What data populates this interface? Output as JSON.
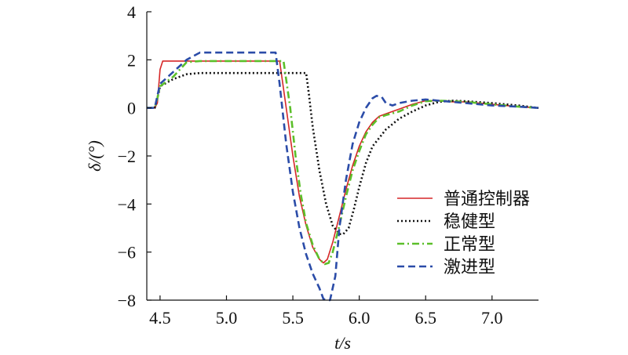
{
  "chart_data": {
    "type": "line",
    "xlabel": "t/s",
    "ylabel": "δ/(°)",
    "xlim": [
      4.4,
      7.35
    ],
    "ylim": [
      -8,
      4
    ],
    "xticks": [
      "4.5",
      "5.0",
      "5.5",
      "6.0",
      "6.5",
      "7.0"
    ],
    "xtick_values": [
      4.5,
      5.0,
      5.5,
      6.0,
      6.5,
      7.0
    ],
    "yticks": [
      "4",
      "2",
      "0",
      "−2",
      "−4",
      "−6",
      "−8"
    ],
    "ytick_values": [
      4,
      2,
      0,
      -2,
      -4,
      -6,
      -8
    ],
    "grid": false,
    "legend_position": "lower-right",
    "series": [
      {
        "name": "普通控制器",
        "color": "#d62728",
        "dash": "solid",
        "x": [
          4.4,
          4.46,
          4.48,
          4.5,
          4.52,
          4.6,
          5.0,
          5.4,
          5.45,
          5.5,
          5.55,
          5.6,
          5.65,
          5.7,
          5.73,
          5.76,
          5.8,
          5.85,
          5.9,
          5.95,
          6.0,
          6.05,
          6.1,
          6.15,
          6.2,
          6.3,
          6.4,
          6.5,
          6.6,
          6.7,
          6.8,
          7.0,
          7.2,
          7.35
        ],
        "y": [
          0,
          0,
          0.2,
          1.6,
          1.95,
          1.95,
          1.95,
          1.95,
          0.0,
          -2.0,
          -3.7,
          -4.9,
          -5.8,
          -6.3,
          -6.45,
          -6.3,
          -5.6,
          -4.5,
          -3.4,
          -2.4,
          -1.6,
          -1.0,
          -0.6,
          -0.35,
          -0.25,
          -0.05,
          0.15,
          0.3,
          0.3,
          0.25,
          0.25,
          0.15,
          0.05,
          0.0
        ]
      },
      {
        "name": "稳健型",
        "color": "#111111",
        "dash": "dotted",
        "x": [
          4.4,
          4.46,
          4.48,
          4.5,
          4.6,
          4.7,
          4.8,
          5.0,
          5.3,
          5.6,
          5.62,
          5.65,
          5.7,
          5.75,
          5.8,
          5.85,
          5.88,
          5.92,
          5.96,
          6.0,
          6.05,
          6.1,
          6.2,
          6.3,
          6.4,
          6.5,
          6.6,
          6.7,
          6.8,
          7.0,
          7.2,
          7.35
        ],
        "y": [
          0,
          0,
          0.4,
          0.9,
          1.2,
          1.4,
          1.45,
          1.45,
          1.45,
          1.45,
          0.6,
          -0.8,
          -2.6,
          -4.0,
          -4.9,
          -5.25,
          -5.25,
          -5.0,
          -4.2,
          -3.3,
          -2.3,
          -1.6,
          -0.9,
          -0.45,
          -0.15,
          0.1,
          0.25,
          0.3,
          0.28,
          0.2,
          0.1,
          0.0
        ]
      },
      {
        "name": "正常型",
        "color": "#5cbf2a",
        "dash": "dashdot",
        "x": [
          4.4,
          4.46,
          4.48,
          4.5,
          4.6,
          4.7,
          4.8,
          5.0,
          5.3,
          5.43,
          5.48,
          5.52,
          5.56,
          5.6,
          5.65,
          5.7,
          5.74,
          5.77,
          5.8,
          5.85,
          5.9,
          5.95,
          6.0,
          6.05,
          6.1,
          6.15,
          6.2,
          6.3,
          6.4,
          6.5,
          6.6,
          6.7,
          6.8,
          7.0,
          7.2,
          7.35
        ],
        "y": [
          0,
          0,
          0.4,
          0.9,
          1.3,
          1.9,
          1.95,
          1.95,
          1.95,
          1.95,
          0.0,
          -2.0,
          -3.6,
          -4.8,
          -5.7,
          -6.3,
          -6.5,
          -6.45,
          -6.0,
          -4.9,
          -3.7,
          -2.6,
          -1.8,
          -1.1,
          -0.7,
          -0.4,
          -0.3,
          -0.15,
          0.1,
          0.28,
          0.3,
          0.28,
          0.25,
          0.15,
          0.05,
          0.0
        ]
      },
      {
        "name": "激进型",
        "color": "#2b4ca8",
        "dash": "dashed",
        "x": [
          4.4,
          4.46,
          4.48,
          4.5,
          4.6,
          4.7,
          4.8,
          5.0,
          5.3,
          5.37,
          5.4,
          5.45,
          5.5,
          5.55,
          5.6,
          5.65,
          5.7,
          5.73,
          5.75,
          5.78,
          5.82,
          5.85,
          5.9,
          5.95,
          6.0,
          6.05,
          6.1,
          6.13,
          6.17,
          6.2,
          6.25,
          6.3,
          6.4,
          6.5,
          6.6,
          6.7,
          6.8,
          7.0,
          7.2,
          7.35
        ],
        "y": [
          0,
          0,
          0.5,
          1.0,
          1.5,
          2.0,
          2.3,
          2.3,
          2.3,
          2.3,
          1.0,
          -1.5,
          -3.5,
          -5.0,
          -6.1,
          -6.9,
          -7.5,
          -7.95,
          -8.0,
          -8.0,
          -7.0,
          -5.0,
          -3.0,
          -1.5,
          -0.6,
          0.0,
          0.4,
          0.5,
          0.45,
          0.2,
          0.1,
          0.2,
          0.3,
          0.35,
          0.3,
          0.25,
          0.2,
          0.1,
          0.05,
          0.0
        ]
      }
    ]
  }
}
